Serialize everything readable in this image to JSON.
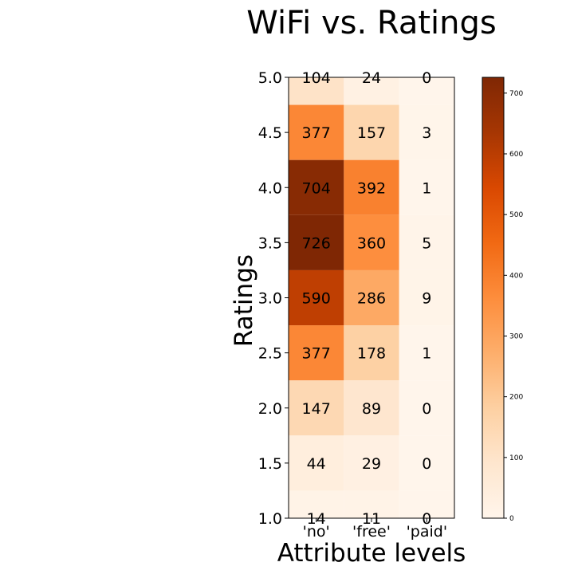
{
  "chart_data": {
    "type": "heatmap",
    "title": "WiFi vs. Ratings",
    "xlabel": "Attribute levels",
    "ylabel": "Ratings",
    "x_categories": [
      "'no'",
      "'free'",
      "'paid'"
    ],
    "y_ticks": [
      "5.0",
      "4.5",
      "4.0",
      "3.5",
      "3.0",
      "2.5",
      "2.0",
      "1.5",
      "1.0"
    ],
    "rows": [
      {
        "rating": "5.0",
        "values": [
          104,
          24,
          0
        ]
      },
      {
        "rating": "4.5",
        "values": [
          377,
          157,
          3
        ]
      },
      {
        "rating": "4.0",
        "values": [
          704,
          392,
          1
        ]
      },
      {
        "rating": "3.5",
        "values": [
          726,
          360,
          5
        ]
      },
      {
        "rating": "3.0",
        "values": [
          590,
          286,
          9
        ]
      },
      {
        "rating": "2.5",
        "values": [
          377,
          178,
          1
        ]
      },
      {
        "rating": "2.0",
        "values": [
          147,
          89,
          0
        ]
      },
      {
        "rating": "1.5",
        "values": [
          44,
          29,
          0
        ]
      },
      {
        "rating": "1.0",
        "values": [
          14,
          11,
          0
        ]
      }
    ],
    "colormap": "Oranges",
    "color_range": [
      0,
      726
    ],
    "colorbar_ticks": [
      "0",
      "100",
      "200",
      "300",
      "400",
      "500",
      "600",
      "700"
    ],
    "colorbar_tick_values": [
      0,
      100,
      200,
      300,
      400,
      500,
      600,
      700
    ],
    "grid": false
  }
}
